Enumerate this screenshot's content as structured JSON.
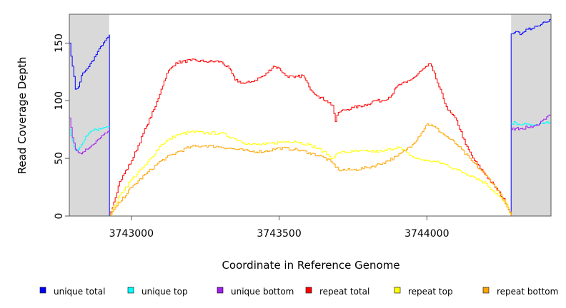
{
  "chart_data": {
    "type": "line",
    "title": "",
    "xlabel": "Coordinate in Reference Genome",
    "ylabel": "Read Coverage Depth",
    "xlim": [
      3742790,
      3744420
    ],
    "ylim": [
      0,
      175
    ],
    "xticks": [
      3743000,
      3743500,
      3744000
    ],
    "xtick_labels": [
      "3743000",
      "3743500",
      "3744000"
    ],
    "yticks": [
      0,
      50,
      100,
      150
    ],
    "ytick_labels": [
      "0",
      "50",
      "100",
      "150"
    ],
    "shaded_regions": [
      [
        3742790,
        3742925
      ],
      [
        3744285,
        3744420
      ]
    ],
    "colors": {
      "unique_total": "#0000ff",
      "unique_top": "#00ffff",
      "unique_bottom": "#a020f0",
      "repeat_total": "#ff0000",
      "repeat_top": "#ffff00",
      "repeat_bottom": "#ffa500",
      "shade": "#d9d9d9"
    },
    "series": [
      {
        "name": "unique total",
        "color_key": "unique_total",
        "x": [
          3742790,
          3742800,
          3742810,
          3742820,
          3742830,
          3742840,
          3742850,
          3742860,
          3742870,
          3742880,
          3742890,
          3742900,
          3742910,
          3742920,
          3742925,
          3742926,
          3744284,
          3744285,
          3744300,
          3744320,
          3744340,
          3744360,
          3744380,
          3744400,
          3744420
        ],
        "values": [
          150,
          130,
          110,
          112,
          122,
          125,
          128,
          132,
          135,
          140,
          145,
          148,
          152,
          155,
          157,
          0,
          0,
          158,
          160,
          158,
          162,
          163,
          165,
          168,
          170
        ]
      },
      {
        "name": "unique top",
        "color_key": "unique_top",
        "x": [
          3742790,
          3742800,
          3742810,
          3742820,
          3742830,
          3742840,
          3742850,
          3742860,
          3742870,
          3742880,
          3742890,
          3742900,
          3742910,
          3742925,
          null,
          3744285,
          3744300,
          3744320,
          3744340,
          3744360,
          3744380,
          3744400,
          3744420
        ],
        "values": [
          75,
          65,
          57,
          58,
          62,
          66,
          70,
          73,
          74,
          75,
          76,
          76,
          77,
          78,
          null,
          80,
          81,
          79,
          80,
          79,
          80,
          81,
          80
        ]
      },
      {
        "name": "unique bottom",
        "color_key": "unique_bottom",
        "x": [
          3742790,
          3742800,
          3742810,
          3742820,
          3742830,
          3742840,
          3742850,
          3742860,
          3742870,
          3742880,
          3742890,
          3742900,
          3742910,
          3742925,
          null,
          3744285,
          3744300,
          3744320,
          3744340,
          3744360,
          3744380,
          3744400,
          3744420
        ],
        "values": [
          85,
          68,
          58,
          55,
          54,
          56,
          58,
          60,
          62,
          65,
          67,
          70,
          72,
          73,
          null,
          75,
          76,
          76,
          77,
          78,
          80,
          84,
          88
        ]
      },
      {
        "name": "repeat total",
        "color_key": "repeat_total",
        "x": [
          3742925,
          3742960,
          3743000,
          3743050,
          3743080,
          3743100,
          3743120,
          3743150,
          3743200,
          3743250,
          3743300,
          3743330,
          3743350,
          3743380,
          3743400,
          3743450,
          3743480,
          3743500,
          3743520,
          3743550,
          3743580,
          3743600,
          3743630,
          3743660,
          3743680,
          3743690,
          3743700,
          3743720,
          3743750,
          3743800,
          3743820,
          3743850,
          3743880,
          3743900,
          3743930,
          3743960,
          3743980,
          3744000,
          3744010,
          3744020,
          3744040,
          3744070,
          3744100,
          3744130,
          3744160,
          3744200,
          3744240,
          3744270,
          3744285
        ],
        "values": [
          0,
          30,
          48,
          78,
          95,
          110,
          124,
          133,
          135,
          134,
          134,
          128,
          118,
          115,
          116,
          122,
          130,
          128,
          122,
          120,
          122,
          112,
          104,
          100,
          96,
          82,
          90,
          92,
          94,
          97,
          100,
          100,
          105,
          113,
          116,
          121,
          126,
          130,
          132,
          126,
          112,
          92,
          83,
          62,
          48,
          35,
          22,
          10,
          0
        ]
      },
      {
        "name": "repeat top",
        "color_key": "repeat_top",
        "x": [
          3742925,
          3742960,
          3743000,
          3743050,
          3743100,
          3743150,
          3743200,
          3743250,
          3743300,
          3743350,
          3743400,
          3743450,
          3743500,
          3743550,
          3743600,
          3743650,
          3743680,
          3743700,
          3743750,
          3743800,
          3743850,
          3743900,
          3743930,
          3743960,
          3744000,
          3744030,
          3744060,
          3744100,
          3744150,
          3744200,
          3744240,
          3744270,
          3744285
        ],
        "values": [
          0,
          18,
          32,
          45,
          62,
          70,
          73,
          72,
          72,
          67,
          62,
          62,
          64,
          65,
          62,
          56,
          50,
          55,
          56,
          56,
          56,
          60,
          55,
          50,
          48,
          47,
          45,
          40,
          35,
          28,
          18,
          10,
          0
        ]
      },
      {
        "name": "repeat bottom",
        "color_key": "repeat_bottom",
        "x": [
          3742925,
          3742960,
          3743000,
          3743050,
          3743100,
          3743150,
          3743200,
          3743250,
          3743300,
          3743350,
          3743400,
          3743450,
          3743500,
          3743550,
          3743600,
          3743650,
          3743680,
          3743700,
          3743750,
          3743800,
          3743850,
          3743900,
          3743930,
          3743950,
          3743980,
          3744000,
          3744020,
          3744050,
          3744100,
          3744150,
          3744200,
          3744240,
          3744270,
          3744285
        ],
        "values": [
          0,
          12,
          25,
          37,
          48,
          55,
          60,
          61,
          60,
          58,
          56,
          56,
          59,
          58,
          55,
          51,
          46,
          40,
          40,
          42,
          46,
          52,
          58,
          62,
          72,
          80,
          78,
          72,
          62,
          48,
          35,
          22,
          8,
          0
        ]
      }
    ],
    "legend_position": "bottom",
    "legend": [
      {
        "label": "unique total",
        "color_key": "unique_total"
      },
      {
        "label": "unique top",
        "color_key": "unique_top"
      },
      {
        "label": "unique bottom",
        "color_key": "unique_bottom"
      },
      {
        "label": "repeat total",
        "color_key": "repeat_total"
      },
      {
        "label": "repeat top",
        "color_key": "repeat_top"
      },
      {
        "label": "repeat bottom",
        "color_key": "repeat_bottom"
      }
    ]
  }
}
